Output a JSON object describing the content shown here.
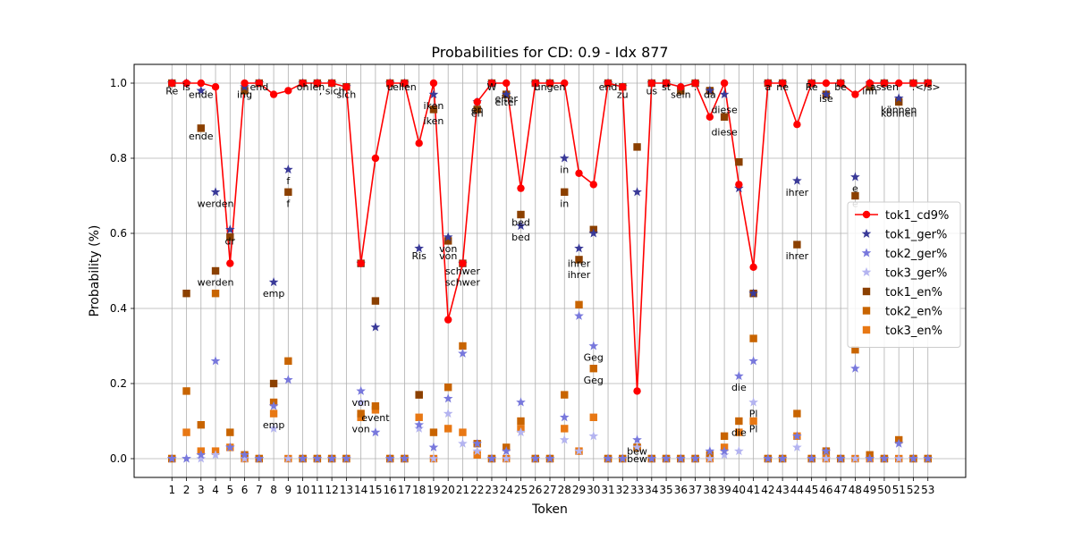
{
  "chart_data": {
    "type": "line",
    "title": "Probabilities for CD: 0.9 - Idx 877",
    "xlabel": "Token",
    "ylabel": "Probability (%)",
    "x": [
      1,
      2,
      3,
      4,
      5,
      6,
      7,
      8,
      9,
      10,
      11,
      12,
      13,
      14,
      15,
      16,
      17,
      18,
      19,
      20,
      21,
      22,
      23,
      24,
      25,
      26,
      27,
      28,
      29,
      30,
      31,
      32,
      33,
      34,
      35,
      36,
      37,
      38,
      39,
      40,
      41,
      42,
      43,
      44,
      45,
      46,
      47,
      48,
      49,
      50,
      51,
      52,
      53
    ],
    "xlim": [
      -1.6,
      55.6
    ],
    "ylim": [
      -0.05,
      1.05
    ],
    "yticks": [
      0.0,
      0.2,
      0.4,
      0.6,
      0.8,
      1.0
    ],
    "ytick_labels": [
      "0.0",
      "0.2",
      "0.4",
      "0.6",
      "0.8",
      "1.0"
    ],
    "grid": true,
    "legend_position": "center-right",
    "series": [
      {
        "name": "tok1_cd9%",
        "marker": "circle-line",
        "color": "#ff0000",
        "values": [
          1.0,
          1.0,
          1.0,
          0.99,
          0.52,
          1.0,
          1.0,
          0.97,
          0.98,
          1.0,
          1.0,
          1.0,
          0.99,
          0.52,
          0.8,
          1.0,
          1.0,
          0.84,
          1.0,
          0.37,
          0.52,
          0.95,
          1.0,
          1.0,
          0.72,
          1.0,
          1.0,
          1.0,
          0.76,
          0.73,
          1.0,
          0.99,
          0.18,
          1.0,
          1.0,
          0.99,
          1.0,
          0.91,
          1.0,
          0.73,
          0.51,
          1.0,
          1.0,
          0.89,
          1.0,
          1.0,
          1.0,
          0.97,
          1.0,
          1.0,
          1.0,
          1.0,
          1.0
        ]
      },
      {
        "name": "tok1_ger%",
        "marker": "star",
        "color": "#3a3a98",
        "values": [
          1.0,
          1.0,
          0.98,
          0.71,
          0.61,
          0.99,
          1.0,
          0.47,
          0.77,
          1.0,
          1.0,
          1.0,
          0.99,
          0.52,
          0.35,
          1.0,
          1.0,
          0.56,
          0.97,
          0.59,
          0.52,
          0.95,
          1.0,
          0.97,
          0.62,
          1.0,
          1.0,
          0.8,
          0.56,
          0.6,
          1.0,
          0.99,
          0.71,
          1.0,
          1.0,
          0.99,
          1.0,
          0.98,
          0.97,
          0.72,
          0.44,
          1.0,
          1.0,
          0.74,
          1.0,
          0.97,
          1.0,
          0.75,
          1.0,
          1.0,
          0.96,
          1.0,
          1.0
        ]
      },
      {
        "name": "tok2_ger%",
        "marker": "star",
        "color": "#7878dc",
        "values": [
          0.0,
          0.0,
          0.01,
          0.26,
          0.03,
          0.01,
          0.0,
          0.14,
          0.21,
          0.0,
          0.0,
          0.0,
          0.0,
          0.18,
          0.07,
          0.0,
          0.0,
          0.09,
          0.03,
          0.16,
          0.28,
          0.04,
          0.0,
          0.02,
          0.15,
          0.0,
          0.0,
          0.11,
          0.38,
          0.3,
          0.0,
          0.0,
          0.05,
          0.0,
          0.0,
          0.0,
          0.0,
          0.02,
          0.02,
          0.22,
          0.26,
          0.0,
          0.0,
          0.06,
          0.0,
          0.02,
          0.0,
          0.24,
          0.0,
          0.0,
          0.04,
          0.0,
          0.0
        ]
      },
      {
        "name": "tok3_ger%",
        "marker": "star",
        "color": "#b4b4f0",
        "values": [
          0.0,
          0.0,
          0.0,
          0.01,
          0.03,
          0.0,
          0.0,
          0.08,
          0.0,
          0.0,
          0.0,
          0.0,
          0.0,
          0.15,
          0.07,
          0.0,
          0.0,
          0.08,
          0.0,
          0.12,
          0.04,
          0.02,
          0.0,
          0.0,
          0.07,
          0.0,
          0.0,
          0.05,
          0.02,
          0.06,
          0.0,
          0.0,
          0.03,
          0.0,
          0.0,
          0.0,
          0.0,
          0.0,
          0.01,
          0.02,
          0.15,
          0.0,
          0.0,
          0.03,
          0.0,
          0.0,
          0.0,
          0.0,
          0.0,
          0.0,
          0.0,
          0.0,
          0.0
        ]
      },
      {
        "name": "tok1_en%",
        "marker": "square",
        "color": "#8b4000",
        "values": [
          1.0,
          0.44,
          0.88,
          0.5,
          0.59,
          0.98,
          1.0,
          0.2,
          0.71,
          1.0,
          1.0,
          1.0,
          0.99,
          0.52,
          0.42,
          1.0,
          1.0,
          0.17,
          0.93,
          0.58,
          0.52,
          0.93,
          1.0,
          0.97,
          0.65,
          1.0,
          1.0,
          0.71,
          0.53,
          0.61,
          1.0,
          0.99,
          0.83,
          1.0,
          1.0,
          0.98,
          1.0,
          0.98,
          0.91,
          0.79,
          0.44,
          1.0,
          1.0,
          0.57,
          1.0,
          0.97,
          1.0,
          0.7,
          0.99,
          1.0,
          0.95,
          1.0,
          1.0
        ]
      },
      {
        "name": "tok2_en%",
        "marker": "square",
        "color": "#c86400",
        "values": [
          0.0,
          0.18,
          0.09,
          0.44,
          0.07,
          0.01,
          0.0,
          0.15,
          0.26,
          0.0,
          0.0,
          0.0,
          0.0,
          0.12,
          0.14,
          0.0,
          0.0,
          0.17,
          0.07,
          0.19,
          0.3,
          0.04,
          0.0,
          0.03,
          0.1,
          0.0,
          0.0,
          0.17,
          0.41,
          0.24,
          0.0,
          0.0,
          0.03,
          0.0,
          0.0,
          0.0,
          0.0,
          0.01,
          0.06,
          0.1,
          0.32,
          0.0,
          0.0,
          0.12,
          0.0,
          0.02,
          0.0,
          0.29,
          0.01,
          0.0,
          0.05,
          0.0,
          0.0
        ]
      },
      {
        "name": "tok3_en%",
        "marker": "square",
        "color": "#e87814",
        "values": [
          0.0,
          0.07,
          0.02,
          0.02,
          0.03,
          0.0,
          0.0,
          0.12,
          0.0,
          0.0,
          0.0,
          0.0,
          0.0,
          0.11,
          0.13,
          0.0,
          0.0,
          0.11,
          0.0,
          0.08,
          0.07,
          0.01,
          0.0,
          0.0,
          0.08,
          0.0,
          0.0,
          0.08,
          0.02,
          0.11,
          0.0,
          0.0,
          0.03,
          0.0,
          0.0,
          0.0,
          0.0,
          0.0,
          0.03,
          0.07,
          0.1,
          0.0,
          0.0,
          0.06,
          0.0,
          0.0,
          0.0,
          0.0,
          0.0,
          0.0,
          0.0,
          0.0,
          0.0
        ]
      }
    ],
    "annotations": [
      {
        "x": 1,
        "y": 0.98,
        "text": "Re"
      },
      {
        "x": 2,
        "y": 0.99,
        "text": "is"
      },
      {
        "x": 3,
        "y": 0.97,
        "text": "ende"
      },
      {
        "x": 3,
        "y": 0.86,
        "text": "ende"
      },
      {
        "x": 4,
        "y": 0.68,
        "text": "werden"
      },
      {
        "x": 4,
        "y": 0.47,
        "text": "werden"
      },
      {
        "x": 5,
        "y": 0.58,
        "text": "dr"
      },
      {
        "x": 6,
        "y": 0.97,
        "text": "ing"
      },
      {
        "x": 7,
        "y": 0.99,
        "text": "end"
      },
      {
        "x": 8,
        "y": 0.44,
        "text": "emp"
      },
      {
        "x": 8,
        "y": 0.09,
        "text": "emp"
      },
      {
        "x": 9,
        "y": 0.74,
        "text": "f"
      },
      {
        "x": 9,
        "y": 0.68,
        "text": "f"
      },
      {
        "x": 10,
        "y": 0.99,
        "text": "oh"
      },
      {
        "x": 11,
        "y": 0.99,
        "text": "len"
      },
      {
        "x": 12,
        "y": 0.98,
        "text": ", sich"
      },
      {
        "x": 13,
        "y": 0.97,
        "text": "sich"
      },
      {
        "x": 14,
        "y": 0.15,
        "text": "von"
      },
      {
        "x": 14,
        "y": 0.08,
        "text": "von"
      },
      {
        "x": 15,
        "y": 0.11,
        "text": "event"
      },
      {
        "x": 16,
        "y": 0.99,
        "text": "u"
      },
      {
        "x": 17,
        "y": 0.99,
        "text": "ellen"
      },
      {
        "x": 18,
        "y": 0.54,
        "text": "Ris"
      },
      {
        "x": 19,
        "y": 0.94,
        "text": "iken"
      },
      {
        "x": 19,
        "y": 0.9,
        "text": "iken"
      },
      {
        "x": 20,
        "y": 0.56,
        "text": "von"
      },
      {
        "x": 20,
        "y": 0.54,
        "text": "von"
      },
      {
        "x": 21,
        "y": 0.5,
        "text": "schwer"
      },
      {
        "x": 21,
        "y": 0.47,
        "text": "schwer"
      },
      {
        "x": 22,
        "y": 0.93,
        "text": "en"
      },
      {
        "x": 22,
        "y": 0.92,
        "text": "en"
      },
      {
        "x": 23,
        "y": 0.99,
        "text": "W"
      },
      {
        "x": 24,
        "y": 0.96,
        "text": "eiter"
      },
      {
        "x": 24,
        "y": 0.95,
        "text": "eiter"
      },
      {
        "x": 25,
        "y": 0.63,
        "text": "bed"
      },
      {
        "x": 25,
        "y": 0.59,
        "text": "bed"
      },
      {
        "x": 26,
        "y": 0.99,
        "text": "l"
      },
      {
        "x": 27,
        "y": 0.99,
        "text": "ungen"
      },
      {
        "x": 28,
        "y": 0.77,
        "text": "in"
      },
      {
        "x": 28,
        "y": 0.68,
        "text": "in"
      },
      {
        "x": 29,
        "y": 0.52,
        "text": "ihrer"
      },
      {
        "x": 29,
        "y": 0.49,
        "text": "ihrer"
      },
      {
        "x": 30,
        "y": 0.27,
        "text": "Geg"
      },
      {
        "x": 30,
        "y": 0.21,
        "text": "Geg"
      },
      {
        "x": 31,
        "y": 0.99,
        "text": "end"
      },
      {
        "x": 32,
        "y": 0.97,
        "text": "zu"
      },
      {
        "x": 33,
        "y": 0.02,
        "text": "bew"
      },
      {
        "x": 33,
        "y": 0.0,
        "text": "bew"
      },
      {
        "x": 34,
        "y": 0.98,
        "text": "us"
      },
      {
        "x": 35,
        "y": 0.99,
        "text": "st"
      },
      {
        "x": 36,
        "y": 0.97,
        "text": "sein"
      },
      {
        "x": 37,
        "y": 0.99,
        "text": "."
      },
      {
        "x": 38,
        "y": 0.97,
        "text": "da"
      },
      {
        "x": 39,
        "y": 0.93,
        "text": "diese"
      },
      {
        "x": 39,
        "y": 0.87,
        "text": "diese"
      },
      {
        "x": 40,
        "y": 0.19,
        "text": "die"
      },
      {
        "x": 40,
        "y": 0.07,
        "text": "die"
      },
      {
        "x": 41,
        "y": 0.12,
        "text": "Pl"
      },
      {
        "x": 41,
        "y": 0.08,
        "text": "Pl"
      },
      {
        "x": 42,
        "y": 0.99,
        "text": "a"
      },
      {
        "x": 43,
        "y": 0.99,
        "text": "ne"
      },
      {
        "x": 44,
        "y": 0.71,
        "text": "ihrer"
      },
      {
        "x": 44,
        "y": 0.54,
        "text": "ihrer"
      },
      {
        "x": 45,
        "y": 0.99,
        "text": "Re"
      },
      {
        "x": 46,
        "y": 0.96,
        "text": "ise"
      },
      {
        "x": 47,
        "y": 0.99,
        "text": "be"
      },
      {
        "x": 48,
        "y": 0.72,
        "text": "e"
      },
      {
        "x": 48,
        "y": 0.68,
        "text": "e"
      },
      {
        "x": 49,
        "y": 0.98,
        "text": "inn"
      },
      {
        "x": 50,
        "y": 0.99,
        "text": "assen"
      },
      {
        "x": 51,
        "y": 0.93,
        "text": "können"
      },
      {
        "x": 51,
        "y": 0.92,
        "text": "können"
      },
      {
        "x": 52,
        "y": 0.99,
        "text": "."
      },
      {
        "x": 53,
        "y": 0.99,
        "text": "</s>"
      }
    ]
  }
}
